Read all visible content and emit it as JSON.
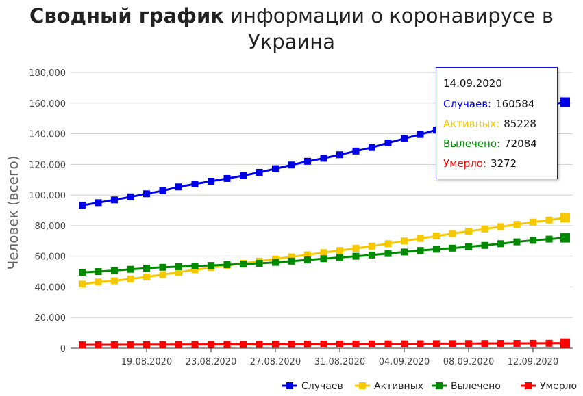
{
  "title": {
    "bold": "Сводный график",
    "rest": " информации о коронавирусе в Украина"
  },
  "chart_data": {
    "type": "line",
    "title": "Сводный график информации о коронавирусе в Украина",
    "ylabel": "Человек (всего)",
    "xlabel": "",
    "ylim": [
      0,
      180000
    ],
    "yticks": [
      "0",
      "20,000",
      "40,000",
      "60,000",
      "80,000",
      "100,000",
      "120,000",
      "140,000",
      "160,000",
      "180,000"
    ],
    "ytick_values": [
      0,
      20000,
      40000,
      60000,
      80000,
      100000,
      120000,
      140000,
      160000,
      180000
    ],
    "x": [
      "15.08.2020",
      "16.08.2020",
      "17.08.2020",
      "18.08.2020",
      "19.08.2020",
      "20.08.2020",
      "21.08.2020",
      "22.08.2020",
      "23.08.2020",
      "24.08.2020",
      "25.08.2020",
      "26.08.2020",
      "27.08.2020",
      "28.08.2020",
      "29.08.2020",
      "30.08.2020",
      "31.08.2020",
      "01.09.2020",
      "02.09.2020",
      "03.09.2020",
      "04.09.2020",
      "05.09.2020",
      "06.09.2020",
      "07.09.2020",
      "08.09.2020",
      "09.09.2020",
      "10.09.2020",
      "11.09.2020",
      "12.09.2020",
      "13.09.2020",
      "14.09.2020"
    ],
    "xtick_labels": [
      "19.08.2020",
      "23.08.2020",
      "27.08.2020",
      "31.08.2020",
      "04.09.2020",
      "08.09.2020",
      "12.09.2020"
    ],
    "xtick_indices": [
      4,
      8,
      12,
      16,
      20,
      24,
      28
    ],
    "grid": true,
    "legend": "bottom-right",
    "series": [
      {
        "name": "Случаев",
        "color": "#0000e6",
        "values": [
          93200,
          95000,
          96800,
          98800,
          100800,
          102800,
          105300,
          107200,
          109000,
          110800,
          112600,
          114800,
          117200,
          119600,
          122000,
          124000,
          126300,
          128700,
          131000,
          134000,
          136800,
          139500,
          142500,
          145000,
          147700,
          150200,
          152800,
          155300,
          157700,
          159100,
          160584
        ]
      },
      {
        "name": "Активных",
        "color": "#f5c800",
        "values": [
          41800,
          43200,
          44000,
          45200,
          46500,
          48000,
          49600,
          51200,
          52600,
          54000,
          55400,
          56800,
          58200,
          59600,
          61000,
          62400,
          63800,
          65200,
          66600,
          68200,
          70000,
          71600,
          73200,
          74800,
          76300,
          77800,
          79300,
          80800,
          82300,
          83600,
          85228
        ]
      },
      {
        "name": "Вылечено",
        "color": "#008a00",
        "values": [
          49500,
          50000,
          50700,
          51500,
          52200,
          52800,
          53200,
          53600,
          54000,
          54500,
          54900,
          55400,
          56000,
          56800,
          57600,
          58400,
          59200,
          60000,
          60800,
          61800,
          62800,
          63800,
          64600,
          65300,
          66200,
          67100,
          68200,
          69400,
          70400,
          71200,
          72084
        ]
      },
      {
        "name": "Умерло",
        "color": "#ff0000",
        "values": [
          2200,
          2230,
          2260,
          2290,
          2320,
          2350,
          2380,
          2410,
          2440,
          2470,
          2500,
          2530,
          2560,
          2590,
          2620,
          2660,
          2700,
          2740,
          2780,
          2820,
          2860,
          2900,
          2940,
          2980,
          3020,
          3060,
          3100,
          3140,
          3180,
          3220,
          3272
        ]
      }
    ],
    "tooltip": {
      "date": "14.09.2020",
      "rows": [
        {
          "label": "Случаев:",
          "value": "160584",
          "color": "#0000e6"
        },
        {
          "label": "Активных:",
          "value": "85228",
          "color": "#f5c800"
        },
        {
          "label": "Вылечено:",
          "value": "72084",
          "color": "#008a00"
        },
        {
          "label": "Умерло:",
          "value": "3272",
          "color": "#ff0000"
        }
      ]
    }
  }
}
